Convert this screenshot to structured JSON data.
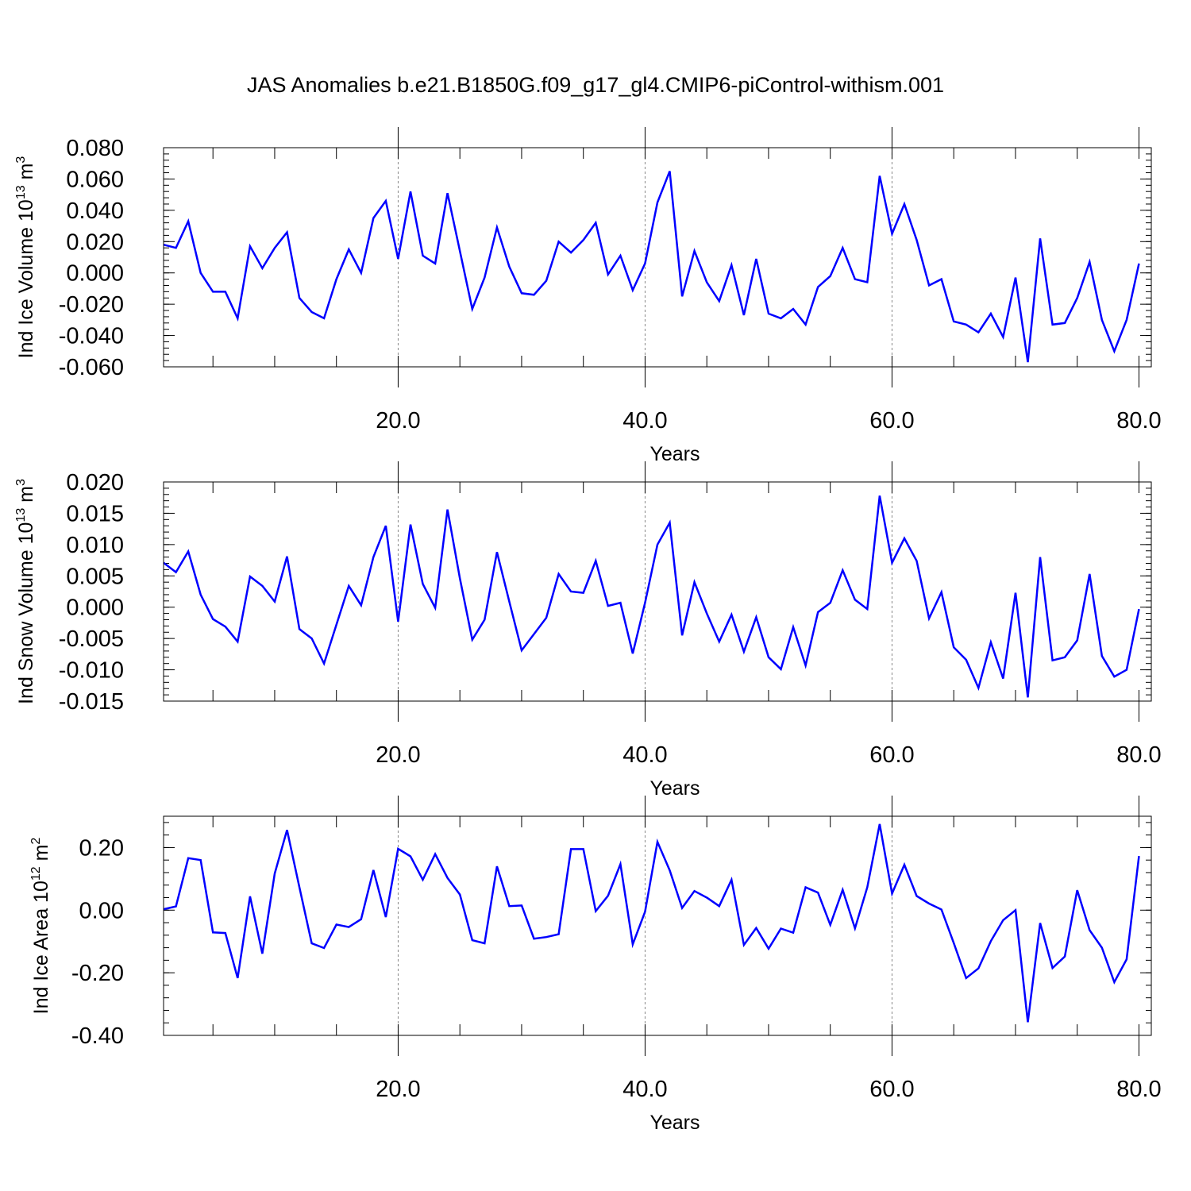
{
  "title": "JAS Anomalies b.e21.B1850G.f09_g17_gl4.CMIP6-piControl-withism.001",
  "colors": {
    "line": "#0000ff",
    "axis": "#000000",
    "refline": "#888888"
  },
  "chart_data": [
    {
      "type": "line",
      "ylabel": "Ind Ice Volume",
      "yunit_base": "10",
      "yunit_exp": "13",
      "yunit_suffix": "m",
      "yunit_suffix_exp": "3",
      "xlabel": "Years",
      "xlim": [
        1,
        81
      ],
      "ylim": [
        -0.06,
        0.08
      ],
      "yticks": [
        -0.06,
        -0.04,
        -0.02,
        0.0,
        0.02,
        0.04,
        0.06,
        0.08
      ],
      "ytick_labels": [
        "-0.060",
        "-0.040",
        "-0.020",
        "0.000",
        "0.020",
        "0.040",
        "0.060",
        "0.080"
      ],
      "xticks": [
        20,
        40,
        60,
        80
      ],
      "xtick_labels": [
        "20.0",
        "40.0",
        "60.0",
        "80.0"
      ],
      "ref_lines_x": [
        20,
        40,
        60
      ],
      "values": [
        0.018,
        0.016,
        0.033,
        0.0,
        -0.012,
        -0.012,
        -0.029,
        0.017,
        0.003,
        0.016,
        0.026,
        -0.016,
        -0.025,
        -0.029,
        -0.004,
        0.015,
        0.0,
        0.035,
        0.046,
        0.009,
        0.052,
        0.011,
        0.006,
        0.051,
        0.014,
        -0.023,
        -0.003,
        0.029,
        0.004,
        -0.013,
        -0.014,
        -0.005,
        0.02,
        0.013,
        0.021,
        0.032,
        -0.001,
        0.011,
        -0.011,
        0.006,
        0.045,
        0.065,
        -0.015,
        0.014,
        -0.006,
        -0.018,
        0.005,
        -0.027,
        0.009,
        -0.026,
        -0.029,
        -0.023,
        -0.033,
        -0.009,
        -0.002,
        0.016,
        -0.004,
        -0.006,
        0.062,
        0.025,
        0.044,
        0.021,
        -0.008,
        -0.004,
        -0.031,
        -0.033,
        -0.038,
        -0.026,
        -0.041,
        -0.003,
        -0.057,
        0.022,
        -0.033,
        -0.032,
        -0.016,
        0.007,
        -0.03,
        -0.05,
        -0.03,
        0.006
      ]
    },
    {
      "type": "line",
      "ylabel": "Ind Snow Volume",
      "yunit_base": "10",
      "yunit_exp": "13",
      "yunit_suffix": "m",
      "yunit_suffix_exp": "3",
      "xlabel": "Years",
      "xlim": [
        1,
        81
      ],
      "ylim": [
        -0.015,
        0.02
      ],
      "yticks": [
        -0.015,
        -0.01,
        -0.005,
        0.0,
        0.005,
        0.01,
        0.015,
        0.02
      ],
      "ytick_labels": [
        "-0.015",
        "-0.010",
        "-0.005",
        "0.000",
        "0.005",
        "0.010",
        "0.015",
        "0.020"
      ],
      "xticks": [
        20,
        40,
        60,
        80
      ],
      "xtick_labels": [
        "20.0",
        "40.0",
        "60.0",
        "80.0"
      ],
      "ref_lines_x": [
        20,
        40,
        60
      ],
      "values": [
        0.0071,
        0.0056,
        0.0089,
        0.002,
        -0.0019,
        -0.0031,
        -0.0055,
        0.0049,
        0.0034,
        0.0009,
        0.0081,
        -0.0035,
        -0.005,
        -0.009,
        -0.0028,
        0.0034,
        0.0003,
        0.008,
        0.013,
        -0.0023,
        0.0132,
        0.0037,
        -0.0001,
        0.0156,
        0.0046,
        -0.0052,
        -0.002,
        0.0088,
        0.0009,
        -0.0069,
        -0.0043,
        -0.0017,
        0.0053,
        0.0025,
        0.0023,
        0.0074,
        0.0002,
        0.0007,
        -0.0074,
        0.0007,
        0.01,
        0.0135,
        -0.0045,
        0.004,
        -0.001,
        -0.0055,
        -0.0012,
        -0.0071,
        -0.0016,
        -0.008,
        -0.0099,
        -0.0032,
        -0.0093,
        -0.0008,
        0.0007,
        0.0059,
        0.0012,
        -0.0003,
        0.0178,
        0.0071,
        0.011,
        0.0074,
        -0.0018,
        0.0024,
        -0.0064,
        -0.0084,
        -0.0129,
        -0.0056,
        -0.0114,
        0.0023,
        -0.0144,
        0.008,
        -0.0085,
        -0.008,
        -0.0053,
        0.0053,
        -0.0078,
        -0.0111,
        -0.01,
        -0.0003
      ]
    },
    {
      "type": "line",
      "ylabel": "Ind Ice Area",
      "yunit_base": "10",
      "yunit_exp": "12",
      "yunit_suffix": "m",
      "yunit_suffix_exp": "2",
      "xlabel": "Years",
      "xlim": [
        1,
        81
      ],
      "ylim": [
        -0.4,
        0.3
      ],
      "yticks": [
        -0.4,
        -0.2,
        0.0,
        0.2
      ],
      "ytick_labels": [
        "-0.40",
        "-0.20",
        "0.00",
        "0.20"
      ],
      "xticks": [
        20,
        40,
        60,
        80
      ],
      "xtick_labels": [
        "20.0",
        "40.0",
        "60.0",
        "80.0"
      ],
      "ref_lines_x": [
        20,
        40,
        60
      ],
      "values": [
        0.003,
        0.012,
        0.166,
        0.16,
        -0.071,
        -0.073,
        -0.217,
        0.044,
        -0.139,
        0.117,
        0.256,
        0.073,
        -0.106,
        -0.121,
        -0.046,
        -0.054,
        -0.029,
        0.128,
        -0.022,
        0.196,
        0.172,
        0.097,
        0.179,
        0.103,
        0.05,
        -0.096,
        -0.106,
        0.14,
        0.013,
        0.015,
        -0.091,
        -0.086,
        -0.077,
        0.195,
        0.195,
        -0.003,
        0.046,
        0.147,
        -0.109,
        -0.005,
        0.218,
        0.127,
        0.007,
        0.061,
        0.04,
        0.013,
        0.097,
        -0.111,
        -0.057,
        -0.123,
        -0.059,
        -0.072,
        0.073,
        0.056,
        -0.047,
        0.065,
        -0.058,
        0.073,
        0.275,
        0.053,
        0.145,
        0.045,
        0.021,
        0.002,
        -0.105,
        -0.217,
        -0.186,
        -0.099,
        -0.032,
        0.0,
        -0.358,
        -0.041,
        -0.185,
        -0.148,
        0.064,
        -0.064,
        -0.12,
        -0.23,
        -0.157,
        0.173
      ]
    }
  ]
}
